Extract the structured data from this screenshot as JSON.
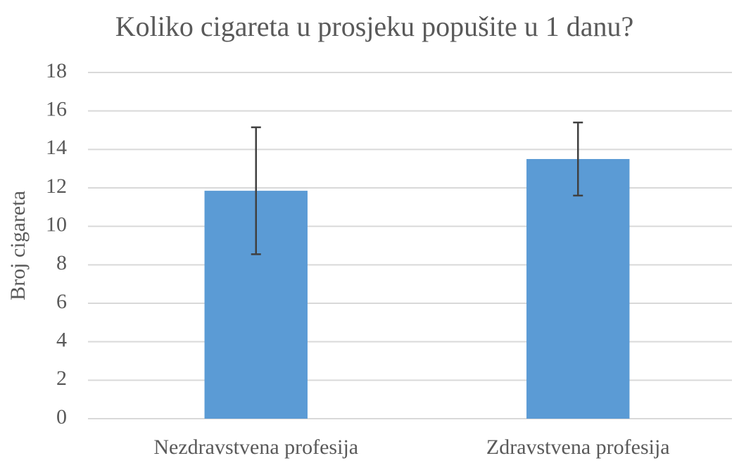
{
  "chart_data": {
    "type": "bar",
    "title": "Koliko cigareta u prosjeku popušite u 1 danu?",
    "ylabel": "Broj cigareta",
    "categories": [
      "Nezdravstvena profesija",
      "Zdravstvena profesija"
    ],
    "values": [
      11.85,
      13.5
    ],
    "errors": [
      3.3,
      1.9
    ],
    "color": "#5b9bd5",
    "ylim": [
      0,
      18
    ],
    "yticks": [
      0,
      2,
      4,
      6,
      8,
      10,
      12,
      14,
      16,
      18
    ],
    "grid": true
  }
}
